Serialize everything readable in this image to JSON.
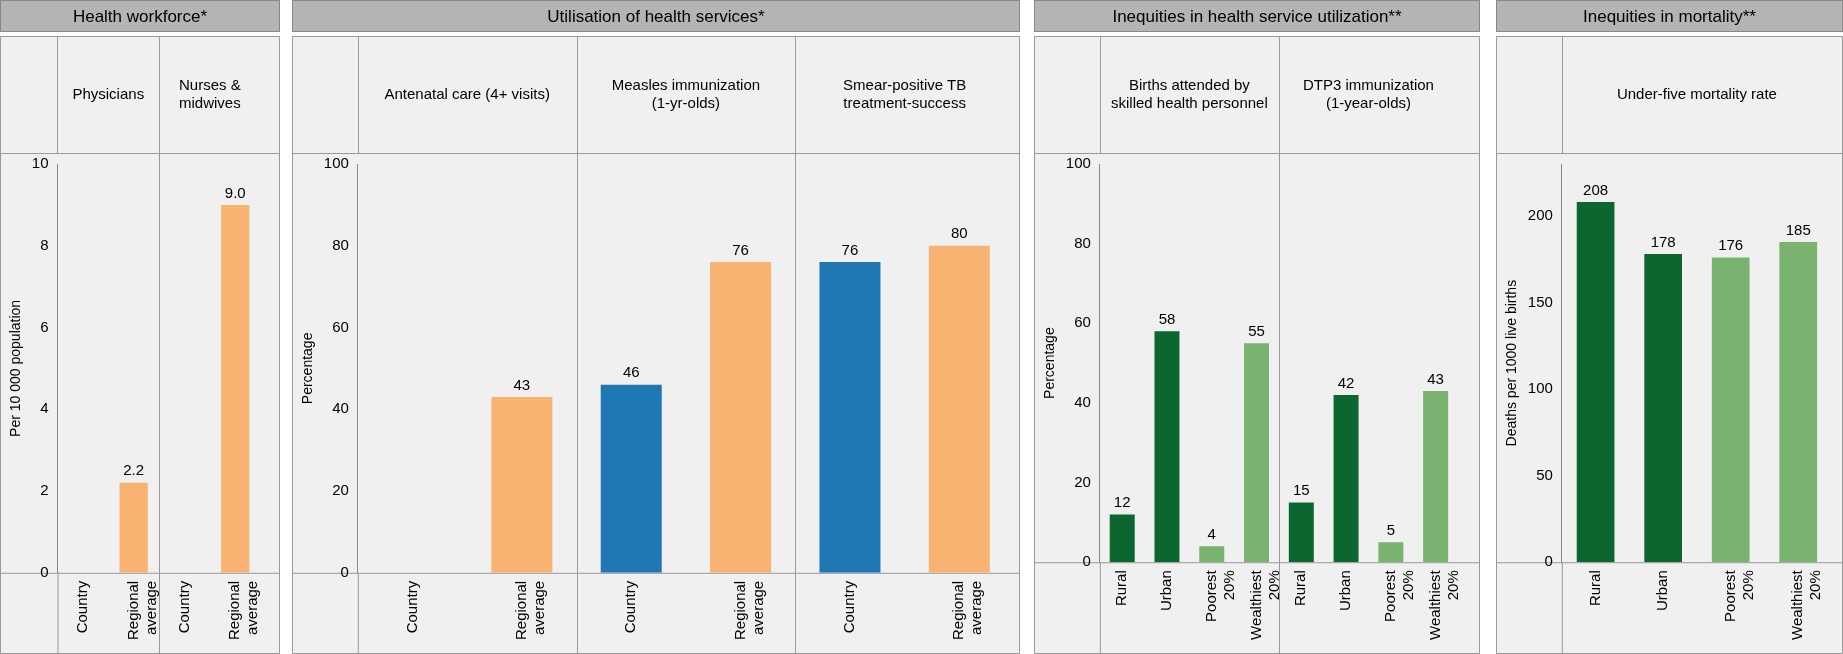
{
  "chart_data": [
    {
      "type": "bar",
      "title": "Health workforce*",
      "ylabel": "Per 10 000 population",
      "annotations": [
        "Physicians",
        "Nurses & midwives"
      ],
      "categories": [
        "Country",
        "Regional average",
        "Country",
        "Regional average"
      ],
      "values": [
        null,
        2.2,
        null,
        9.0
      ],
      "value_labels": [
        null,
        "2.2",
        null,
        "9.0"
      ],
      "colors": [
        "#f8b373",
        "#f8b373",
        "#f8b373",
        "#f8b373"
      ],
      "ylim": [
        0,
        10
      ],
      "yticks": [
        0,
        2,
        4,
        6,
        8,
        10
      ]
    },
    {
      "type": "bar",
      "title": "Utilisation of health services*",
      "ylabel": "Percentage",
      "annotations": [
        "Antenatal care (4+ visits)",
        "Measles immunization (1-yr-olds)",
        "Smear-positive TB treatment-success"
      ],
      "categories": [
        "Country",
        "Regional average",
        "Country",
        "Regional average",
        "Country",
        "Regional average"
      ],
      "values": [
        null,
        43,
        46,
        76,
        76,
        80
      ],
      "value_labels": [
        null,
        "43",
        "46",
        "76",
        "76",
        "80"
      ],
      "colors": [
        "#1f77b4",
        "#f8b373",
        "#1f77b4",
        "#f8b373",
        "#1f77b4",
        "#f8b373"
      ],
      "ylim": [
        0,
        100
      ],
      "yticks": [
        0,
        20,
        40,
        60,
        80,
        100
      ]
    },
    {
      "type": "bar",
      "title": "Inequities in health service utilization**",
      "ylabel": "Percentage",
      "annotations": [
        "Births attended by skilled health personnel",
        "DTP3 immunization (1-year-olds)"
      ],
      "categories": [
        "Rural",
        "Urban",
        "Poorest 20%",
        "Wealthiest 20%",
        "Rural",
        "Urban",
        "Poorest 20%",
        "Wealthiest 20%"
      ],
      "values": [
        12,
        58,
        4,
        55,
        15,
        42,
        5,
        43
      ],
      "value_labels": [
        "12",
        "58",
        "4",
        "55",
        "15",
        "42",
        "5",
        "43"
      ],
      "colors": [
        "#0b6630",
        "#0b6630",
        "#7ab26f",
        "#7ab26f",
        "#0b6630",
        "#0b6630",
        "#7ab26f",
        "#7ab26f"
      ],
      "ylim": [
        0,
        100
      ],
      "yticks": [
        0,
        20,
        40,
        60,
        80,
        100
      ]
    },
    {
      "type": "bar",
      "title": "Inequities in mortality**",
      "ylabel": "Deaths per 1000 live births",
      "annotations": [
        "Under-five mortality rate"
      ],
      "categories": [
        "Rural",
        "Urban",
        "Poorest 20%",
        "Wealthiest 20%"
      ],
      "values": [
        208,
        178,
        176,
        185
      ],
      "value_labels": [
        "208",
        "178",
        "176",
        "185"
      ],
      "colors": [
        "#0b6630",
        "#0b6630",
        "#7ab26f",
        "#7ab26f"
      ],
      "ylim": [
        0,
        230
      ],
      "yticks": [
        0,
        50,
        100,
        150,
        200
      ]
    }
  ]
}
